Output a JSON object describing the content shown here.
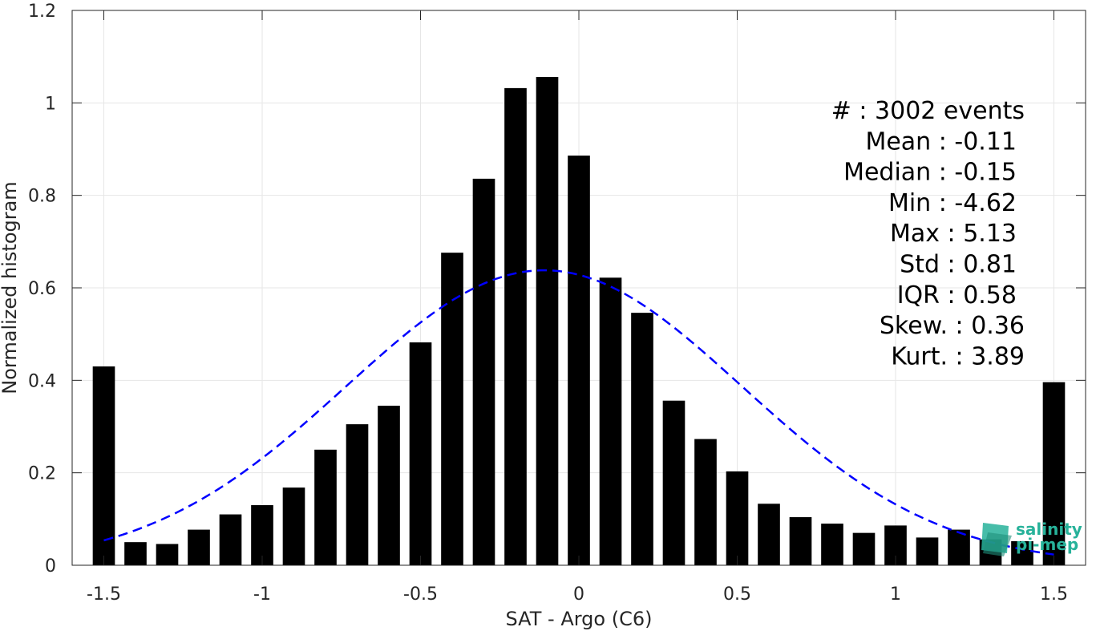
{
  "chart_data": {
    "type": "bar",
    "xlabel": "SAT - Argo (C6)",
    "ylabel": "Normalized histogram",
    "xlim": [
      -1.6,
      1.6
    ],
    "ylim": [
      0,
      1.2
    ],
    "xticks": [
      -1.5,
      -1,
      -0.5,
      0,
      0.5,
      1,
      1.5
    ],
    "xtick_labels": [
      "-1.5",
      "-1",
      "-0.5",
      "0",
      "0.5",
      "1",
      "1.5"
    ],
    "yticks": [
      0,
      0.2,
      0.4,
      0.6,
      0.8,
      1,
      1.2
    ],
    "ytick_labels": [
      "0",
      "0.2",
      "0.4",
      "0.6",
      "0.8",
      "1",
      "1.2"
    ],
    "grid": true,
    "bars": {
      "x": [
        -1.5,
        -1.4,
        -1.3,
        -1.2,
        -1.1,
        -1.0,
        -0.9,
        -0.8,
        -0.7,
        -0.6,
        -0.5,
        -0.4,
        -0.3,
        -0.2,
        -0.1,
        0.0,
        0.1,
        0.2,
        0.3,
        0.4,
        0.5,
        0.6,
        0.7,
        0.8,
        0.9,
        1.0,
        1.1,
        1.2,
        1.3,
        1.4,
        1.5
      ],
      "values": [
        0.43,
        0.05,
        0.046,
        0.077,
        0.11,
        0.13,
        0.168,
        0.25,
        0.305,
        0.345,
        0.482,
        0.676,
        0.836,
        1.032,
        1.056,
        0.886,
        0.622,
        0.546,
        0.356,
        0.273,
        0.203,
        0.133,
        0.104,
        0.09,
        0.07,
        0.086,
        0.06,
        0.077,
        0.056,
        0.052,
        0.396
      ],
      "width": 0.07,
      "color": "#000000"
    },
    "fit": {
      "type": "gaussian",
      "mean": -0.11,
      "std": 0.625,
      "peak": 0.638,
      "x_range": [
        -1.5,
        1.5
      ],
      "color": "#0000ff",
      "style": "dashed"
    },
    "stats": [
      {
        "label": "#  ",
        "value": ": 3002 events"
      },
      {
        "label": "Mean",
        "value": ": -0.11"
      },
      {
        "label": "Median",
        "value": ": -0.15"
      },
      {
        "label": "Min",
        "value": ": -4.62"
      },
      {
        "label": "Max",
        "value": ": 5.13"
      },
      {
        "label": "Std",
        "value": ": 0.81"
      },
      {
        "label": "IQR",
        "value": ": 0.58"
      },
      {
        "label": "Skew.",
        "value": ": 0.36"
      },
      {
        "label": "Kurt.",
        "value": ": 3.89"
      }
    ]
  },
  "logo": {
    "line1": "salinity",
    "line2": "pi-mep",
    "color": "#27b29a"
  }
}
